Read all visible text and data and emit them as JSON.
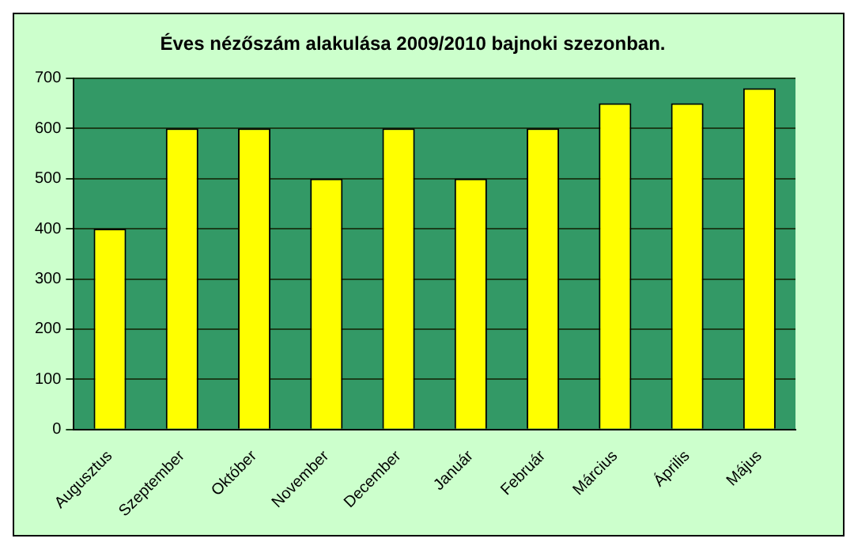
{
  "chart_data": {
    "type": "bar",
    "title": "Éves nézőszám alakulása 2009/2010 bajnoki szezonban.",
    "categories": [
      "Augusztus",
      "Szeptember",
      "Október",
      "November",
      "December",
      "Január",
      "Február",
      "Március",
      "Április",
      "Május"
    ],
    "values": [
      400,
      600,
      600,
      500,
      600,
      500,
      600,
      650,
      650,
      680
    ],
    "color": "#ffff00",
    "ylim": [
      0,
      700
    ],
    "yticks": [
      0,
      100,
      200,
      300,
      400,
      500,
      600,
      700
    ],
    "grid": "y",
    "legend": false
  }
}
